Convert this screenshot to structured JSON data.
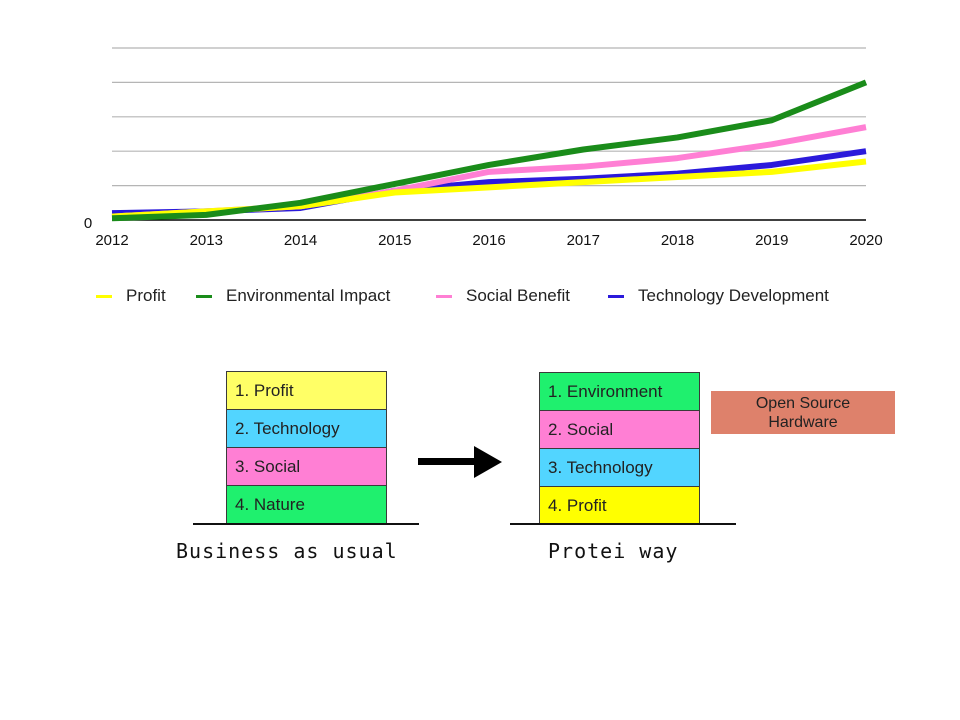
{
  "chart_data": {
    "type": "line",
    "title": "",
    "xlabel": "",
    "ylabel": "",
    "x": [
      "2012",
      "2013",
      "2014",
      "2015",
      "2016",
      "2017",
      "2018",
      "2019",
      "2020"
    ],
    "ylim": [
      0,
      5
    ],
    "y_tick_labels": [
      "0"
    ],
    "grid": true,
    "legend_position": "bottom",
    "series": [
      {
        "name": "Profit",
        "color": "#ffff00",
        "values": [
          0.1,
          0.25,
          0.4,
          0.8,
          0.95,
          1.1,
          1.25,
          1.4,
          1.7
        ]
      },
      {
        "name": "Environmental Impact",
        "color": "#1a8c1a",
        "values": [
          0.05,
          0.15,
          0.5,
          1.05,
          1.6,
          2.05,
          2.4,
          2.9,
          4.0
        ]
      },
      {
        "name": "Social Benefit",
        "color": "#ff7fd4",
        "values": [
          0.1,
          0.25,
          0.4,
          0.85,
          1.4,
          1.55,
          1.8,
          2.2,
          2.7
        ]
      },
      {
        "name": "Technology Development",
        "color": "#2b1adb",
        "values": [
          0.2,
          0.25,
          0.35,
          0.85,
          1.1,
          1.2,
          1.35,
          1.6,
          2.0
        ]
      }
    ]
  },
  "diagram": {
    "business_as_usual": {
      "caption": "Business as usual",
      "blocks": [
        {
          "label": "1. Profit",
          "color": "#ffff66"
        },
        {
          "label": "2. Technology",
          "color": "#52d5ff"
        },
        {
          "label": "3. Social",
          "color": "#ff7fd4"
        },
        {
          "label": "4. Nature",
          "color": "#1ff06e"
        }
      ]
    },
    "protei_way": {
      "caption": "Protei way",
      "blocks": [
        {
          "label": "1. Environment",
          "color": "#1ff06e"
        },
        {
          "label": "2. Social",
          "color": "#ff7fd4"
        },
        {
          "label": "3. Technology",
          "color": "#52d5ff"
        },
        {
          "label": "4. Profit",
          "color": "#ffff00"
        }
      ]
    },
    "open_source_hardware": {
      "line1": "Open Source",
      "line2": "Hardware",
      "color": "#de816b"
    }
  }
}
